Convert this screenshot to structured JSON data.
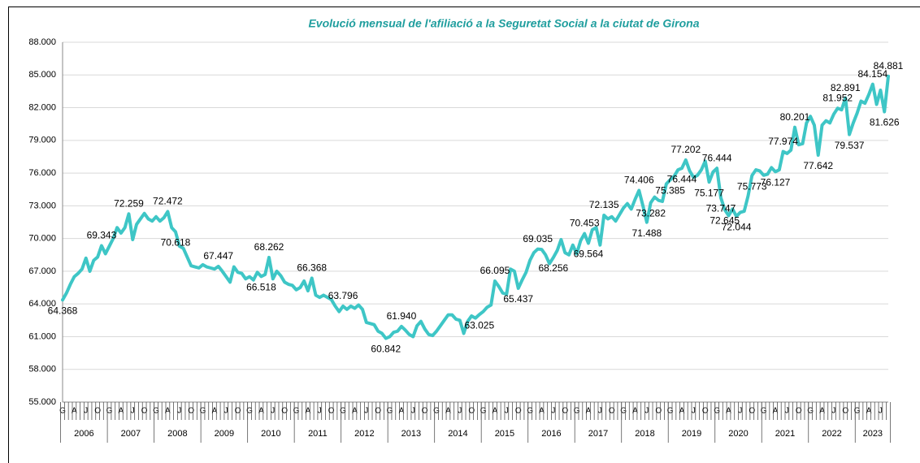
{
  "chart_data": {
    "type": "line",
    "title": "Evolució mensual de l'afiliació a la Seguretat Social a la ciutat de Girona",
    "color": "#3ec6c6",
    "ylim": [
      55000,
      88000
    ],
    "yticks": [
      {
        "value": 55000,
        "label": "55.000"
      },
      {
        "value": 58000,
        "label": "58.000"
      },
      {
        "value": 61000,
        "label": "61.000"
      },
      {
        "value": 64000,
        "label": "64.000"
      },
      {
        "value": 67000,
        "label": "67.000"
      },
      {
        "value": 70000,
        "label": "70.000"
      },
      {
        "value": 73000,
        "label": "73.000"
      },
      {
        "value": 76000,
        "label": "76.000"
      },
      {
        "value": 79000,
        "label": "79.000"
      },
      {
        "value": 82000,
        "label": "82.000"
      },
      {
        "value": 85000,
        "label": "85.000"
      },
      {
        "value": 88000,
        "label": "88.000"
      }
    ],
    "grid": true,
    "year_labels": [
      "2006",
      "2007",
      "2008",
      "2009",
      "2010",
      "2011",
      "2012",
      "2013",
      "2014",
      "2015",
      "2016",
      "2017",
      "2018",
      "2019",
      "2020",
      "2021",
      "2022",
      "2023"
    ],
    "categories": [
      "G",
      null,
      null,
      "A",
      null,
      null,
      "J",
      null,
      null,
      "O",
      null,
      null,
      "G",
      null,
      null,
      "A",
      null,
      null,
      "J",
      null,
      null,
      "O",
      null,
      null,
      "G",
      null,
      null,
      "A",
      null,
      null,
      "J",
      null,
      null,
      "O",
      null,
      null,
      "G",
      null,
      null,
      "A",
      null,
      null,
      "J",
      null,
      null,
      "O",
      null,
      null,
      "G",
      null,
      null,
      "A",
      null,
      null,
      "J",
      null,
      null,
      "O",
      null,
      null,
      "G",
      null,
      null,
      "A",
      null,
      null,
      "J",
      null,
      null,
      "O",
      null,
      null,
      "G",
      null,
      null,
      "A",
      null,
      null,
      "J",
      null,
      null,
      "O",
      null,
      null,
      "G",
      null,
      null,
      "A",
      null,
      null,
      "J",
      null,
      null,
      "O",
      null,
      null,
      "G",
      null,
      null,
      "A",
      null,
      null,
      "J",
      null,
      null,
      "O",
      null,
      null,
      "G",
      null,
      null,
      "A",
      null,
      null,
      "J",
      null,
      null,
      "O",
      null,
      null,
      "G",
      null,
      null,
      "A",
      null,
      null,
      "J",
      null,
      null,
      "O",
      null,
      null,
      "G",
      null,
      null,
      "A",
      null,
      null,
      "J",
      null,
      null,
      "O",
      null,
      null,
      "G",
      null,
      null,
      "A",
      null,
      null,
      "J",
      null,
      null,
      "O",
      null,
      null,
      "G",
      null,
      null,
      "A",
      null,
      null,
      "J",
      null,
      null,
      "O",
      null,
      null,
      "G",
      null,
      null,
      "A",
      null,
      null,
      "J",
      null,
      null,
      "O",
      null,
      null,
      "G",
      null,
      null,
      "A",
      null,
      null,
      "J",
      null,
      null,
      "O",
      null,
      null,
      "G",
      null,
      null,
      "A",
      null,
      null,
      "J",
      null,
      null,
      "O",
      null,
      null,
      "G",
      null,
      null,
      "A",
      null,
      null,
      "J",
      null,
      null
    ],
    "values": [
      64368,
      65000,
      65800,
      66500,
      66800,
      67200,
      68200,
      67000,
      68000,
      68300,
      69343,
      68600,
      69300,
      70000,
      71000,
      70500,
      71000,
      72259,
      69900,
      71300,
      71800,
      72300,
      71800,
      71600,
      72000,
      71600,
      71900,
      72472,
      71000,
      70618,
      69300,
      69100,
      68300,
      67500,
      67400,
      67300,
      67600,
      67400,
      67300,
      67200,
      67447,
      67000,
      66500,
      66000,
      67400,
      66900,
      66800,
      66300,
      66500,
      66200,
      66900,
      66518,
      66700,
      68262,
      66300,
      67000,
      66600,
      66000,
      65800,
      65700,
      65300,
      65500,
      66100,
      65200,
      66368,
      64800,
      64600,
      64800,
      64600,
      64400,
      63800,
      63300,
      63796,
      63500,
      63800,
      63600,
      63900,
      63500,
      62300,
      62200,
      62100,
      61500,
      61300,
      60842,
      61000,
      61400,
      61500,
      61940,
      61600,
      61200,
      61000,
      62000,
      62400,
      61700,
      61200,
      61100,
      61500,
      62000,
      62500,
      63000,
      63000,
      62600,
      62500,
      61300,
      62400,
      62900,
      62700,
      63025,
      63300,
      63700,
      63900,
      66095,
      65600,
      65000,
      64900,
      67200,
      67000,
      65437,
      66200,
      66900,
      68000,
      68700,
      69035,
      69000,
      68500,
      67700,
      68256,
      68900,
      69900,
      68700,
      68500,
      69400,
      68600,
      69800,
      70453,
      69564,
      70800,
      71000,
      69400,
      72135,
      71800,
      72000,
      71600,
      72200,
      72800,
      73200,
      72700,
      73600,
      74406,
      73000,
      71488,
      73282,
      73800,
      73500,
      73400,
      75000,
      75385,
      75700,
      76300,
      76444,
      77202,
      76200,
      75600,
      75800,
      76300,
      77100,
      75177,
      76100,
      76444,
      73747,
      72645,
      72100,
      72700,
      72044,
      72400,
      72500,
      73900,
      75773,
      76300,
      76200,
      75800,
      75900,
      76500,
      76127,
      76300,
      77974,
      77800,
      78100,
      80201,
      78600,
      78700,
      80600,
      81200,
      80400,
      77642,
      80400,
      80800,
      80600,
      81400,
      81952,
      81800,
      82891,
      79537,
      80600,
      81500,
      82600,
      82400,
      83200,
      84154,
      82300,
      83600,
      81626,
      84881
    ],
    "value_labels": [
      "64.368",
      null,
      null,
      null,
      null,
      null,
      null,
      null,
      null,
      null,
      "69.343",
      null,
      null,
      null,
      null,
      null,
      null,
      "72.259",
      null,
      null,
      null,
      null,
      null,
      null,
      null,
      null,
      null,
      "72.472",
      null,
      "70.618",
      null,
      null,
      null,
      null,
      null,
      null,
      null,
      null,
      null,
      null,
      "67.447",
      null,
      null,
      null,
      null,
      null,
      null,
      null,
      null,
      null,
      null,
      "66.518",
      null,
      "68.262",
      null,
      null,
      null,
      null,
      null,
      null,
      null,
      null,
      null,
      null,
      "66.368",
      null,
      null,
      null,
      null,
      null,
      null,
      null,
      "63.796",
      null,
      null,
      null,
      null,
      null,
      null,
      null,
      null,
      null,
      null,
      "60.842",
      null,
      null,
      null,
      "61.940",
      null,
      null,
      null,
      null,
      null,
      null,
      null,
      null,
      null,
      null,
      null,
      null,
      null,
      null,
      null,
      null,
      null,
      null,
      null,
      "63.025",
      null,
      null,
      null,
      "66.095",
      null,
      null,
      null,
      null,
      null,
      "65.437",
      null,
      null,
      null,
      null,
      "69.035",
      null,
      null,
      null,
      "68.256",
      null,
      null,
      null,
      null,
      null,
      null,
      null,
      "70.453",
      "69.564",
      null,
      null,
      null,
      "72.135",
      null,
      null,
      null,
      null,
      null,
      null,
      null,
      null,
      "74.406",
      null,
      "71.488",
      "73.282",
      null,
      null,
      null,
      null,
      "75.385",
      null,
      null,
      "76.444",
      "77.202",
      null,
      null,
      null,
      null,
      null,
      "75.177",
      null,
      "76.444",
      "73.747",
      "72.645",
      null,
      null,
      "72.044",
      null,
      null,
      null,
      "75.773",
      null,
      null,
      null,
      null,
      null,
      "76.127",
      null,
      "77.974",
      null,
      null,
      "80.201",
      null,
      null,
      null,
      null,
      null,
      "77.642",
      null,
      null,
      null,
      null,
      "81.952",
      null,
      "82.891",
      "79.537",
      null,
      null,
      null,
      null,
      null,
      "84.154",
      null,
      null,
      "81.626",
      "84.881"
    ]
  }
}
